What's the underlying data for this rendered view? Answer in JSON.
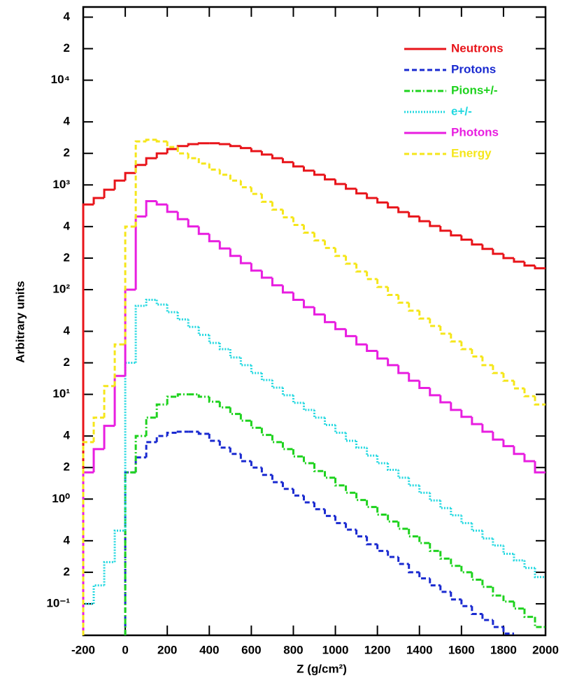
{
  "chart_data": {
    "type": "histogram",
    "x_label": "Z (g/cm²)",
    "y_label": "Arbitrary units",
    "log_y": true,
    "legend": "upper right",
    "xlim": [
      -200,
      2000
    ],
    "ylim": [
      0.05,
      50000
    ],
    "xticks": [
      -200,
      0,
      200,
      400,
      600,
      800,
      1000,
      1200,
      1400,
      1600,
      1800,
      2000
    ],
    "yticks": [
      {
        "value": 40000,
        "label": "4"
      },
      {
        "value": 20000,
        "label": "2"
      },
      {
        "value": 10000,
        "label": "10⁴"
      },
      {
        "value": 4000,
        "label": "4"
      },
      {
        "value": 2000,
        "label": "2"
      },
      {
        "value": 1000,
        "label": "10³"
      },
      {
        "value": 400,
        "label": "4"
      },
      {
        "value": 200,
        "label": "2"
      },
      {
        "value": 100,
        "label": "10²"
      },
      {
        "value": 40,
        "label": "4"
      },
      {
        "value": 20,
        "label": "2"
      },
      {
        "value": 10,
        "label": "10¹"
      },
      4,
      2,
      {
        "value": 1,
        "label": "10⁰"
      },
      {
        "value": 0.4,
        "label": "4"
      },
      {
        "value": 0.2,
        "label": "2"
      },
      {
        "value": 0.1,
        "label": "10⁻¹"
      }
    ],
    "bins": [
      -200,
      -150,
      -100,
      -50,
      0,
      50,
      100,
      150,
      200,
      250,
      300,
      350,
      400,
      450,
      500,
      550,
      600,
      650,
      700,
      750,
      800,
      850,
      900,
      950,
      1000,
      1050,
      1100,
      1150,
      1200,
      1250,
      1300,
      1350,
      1400,
      1450,
      1500,
      1550,
      1600,
      1650,
      1700,
      1750,
      1800,
      1850,
      1900,
      1950,
      2000
    ],
    "series": [
      {
        "name": "Neutrons",
        "color": "#e8141a",
        "linestyle": "solid",
        "values": [
          650,
          750,
          900,
          1100,
          1300,
          1550,
          1800,
          2000,
          2200,
          2350,
          2450,
          2500,
          2500,
          2450,
          2350,
          2250,
          2100,
          1950,
          1800,
          1650,
          1500,
          1370,
          1250,
          1130,
          1020,
          920,
          830,
          750,
          680,
          610,
          550,
          500,
          450,
          405,
          365,
          330,
          300,
          270,
          245,
          220,
          200,
          185,
          170,
          160
        ]
      },
      {
        "name": "Protons",
        "color": "#1a2ad0",
        "linestyle": "dashed",
        "values": [
          null,
          null,
          null,
          null,
          1.8,
          2.5,
          3.5,
          4,
          4.3,
          4.4,
          4.4,
          4.2,
          3.6,
          3.1,
          2.7,
          2.3,
          2.0,
          1.7,
          1.45,
          1.25,
          1.08,
          0.93,
          0.8,
          0.69,
          0.59,
          0.51,
          0.44,
          0.37,
          0.32,
          0.28,
          0.24,
          0.2,
          0.175,
          0.15,
          0.13,
          0.11,
          0.095,
          0.08,
          0.07,
          0.06,
          0.052,
          null,
          null,
          null
        ]
      },
      {
        "name": "Pions+/-",
        "color": "#1ed21e",
        "linestyle": "dashdot",
        "values": [
          null,
          null,
          null,
          null,
          1.8,
          4,
          6,
          8,
          9.5,
          10,
          10,
          9.5,
          8.5,
          7.5,
          6.5,
          5.6,
          4.8,
          4.1,
          3.5,
          3.0,
          2.55,
          2.2,
          1.85,
          1.6,
          1.35,
          1.15,
          0.98,
          0.84,
          0.71,
          0.61,
          0.52,
          0.44,
          0.38,
          0.32,
          0.27,
          0.23,
          0.2,
          0.17,
          0.145,
          0.12,
          0.105,
          0.09,
          0.075,
          0.06
        ]
      },
      {
        "name": "e+/-",
        "color": "#22d8e0",
        "linestyle": "dotted",
        "values": [
          0.1,
          0.15,
          0.25,
          0.5,
          20,
          70,
          80,
          72,
          61,
          52,
          44,
          37,
          31,
          27,
          22.5,
          19,
          16,
          13.7,
          11.6,
          9.8,
          8.3,
          7.1,
          6.0,
          5.1,
          4.3,
          3.6,
          3.1,
          2.6,
          2.2,
          1.9,
          1.6,
          1.35,
          1.15,
          0.97,
          0.82,
          0.7,
          0.59,
          0.5,
          0.42,
          0.36,
          0.3,
          0.26,
          0.22,
          0.18
        ]
      },
      {
        "name": "Photons",
        "color": "#e81ee0",
        "linestyle": "solid",
        "values": [
          1.8,
          3,
          5,
          15,
          100,
          500,
          700,
          650,
          553,
          471,
          401,
          341,
          290,
          247,
          210,
          179,
          152,
          130,
          110,
          94,
          80,
          68,
          58,
          49,
          42,
          36,
          30,
          26,
          22,
          19,
          16,
          13.5,
          11.5,
          9.8,
          8.4,
          7.1,
          6.1,
          5.2,
          4.4,
          3.7,
          3.2,
          2.7,
          2.3,
          1.8
        ]
      },
      {
        "name": "Energy",
        "color": "#f5e61a",
        "linestyle": "dashed",
        "values": [
          3.5,
          6,
          12,
          30,
          400,
          2600,
          2700,
          2600,
          2300,
          2000,
          1800,
          1600,
          1400,
          1250,
          1100,
          950,
          820,
          690,
          580,
          490,
          415,
          350,
          295,
          250,
          210,
          177,
          149,
          126,
          106,
          89,
          75,
          63,
          53,
          45,
          38,
          32,
          27,
          23,
          19,
          16,
          13.5,
          11.4,
          9.6,
          8
        ]
      }
    ]
  }
}
